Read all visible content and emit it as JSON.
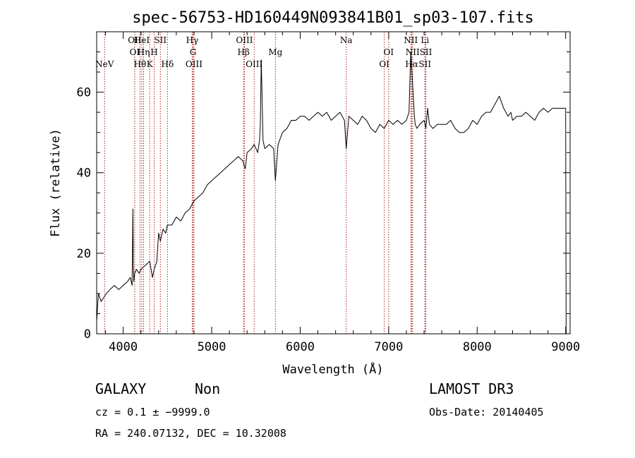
{
  "chart_data": {
    "type": "line",
    "title": "spec-56753-HD160449N093841B01_sp03-107.fits",
    "xlabel": "Wavelength (Å)",
    "ylabel": "Flux (relative)",
    "xlim": [
      3700,
      9050
    ],
    "ylim": [
      0,
      75
    ],
    "x_ticks": [
      4000,
      5000,
      6000,
      7000,
      8000,
      9000
    ],
    "y_ticks": [
      0,
      20,
      40,
      60
    ],
    "grid": false,
    "series": [
      {
        "x": [
          3700,
          3720,
          3750,
          3780,
          3810,
          3850,
          3900,
          3950,
          4000,
          4050,
          4080,
          4100,
          4110,
          4115,
          4120,
          4130,
          4150,
          4180,
          4200,
          4250,
          4300,
          4330,
          4350,
          4380,
          4400,
          4420,
          4450,
          4480,
          4500,
          4550,
          4600,
          4650,
          4700,
          4750,
          4800,
          4850,
          4900,
          4950,
          5000,
          5050,
          5100,
          5150,
          5200,
          5250,
          5300,
          5350,
          5380,
          5400,
          5450,
          5480,
          5500,
          5520,
          5540,
          5550,
          5560,
          5580,
          5600,
          5650,
          5700,
          5720,
          5750,
          5800,
          5850,
          5900,
          5950,
          6000,
          6050,
          6100,
          6150,
          6200,
          6250,
          6300,
          6350,
          6400,
          6450,
          6500,
          6520,
          6550,
          6600,
          6650,
          6700,
          6750,
          6800,
          6850,
          6900,
          6950,
          7000,
          7050,
          7100,
          7150,
          7200,
          7230,
          7250,
          7270,
          7290,
          7300,
          7320,
          7350,
          7400,
          7420,
          7440,
          7460,
          7500,
          7550,
          7600,
          7650,
          7700,
          7750,
          7800,
          7850,
          7900,
          7950,
          8000,
          8050,
          8100,
          8150,
          8200,
          8250,
          8300,
          8350,
          8380,
          8400,
          8450,
          8500,
          8550,
          8600,
          8650,
          8700,
          8750,
          8800,
          8850,
          8900,
          8950,
          9000,
          9005
        ],
        "y": [
          3,
          10,
          8,
          9,
          10,
          11,
          12,
          11,
          12,
          13,
          14,
          12,
          31,
          17,
          13,
          15,
          16,
          15,
          16,
          17,
          18,
          14,
          16,
          18,
          25,
          23,
          26,
          25,
          27,
          27,
          29,
          28,
          30,
          31,
          33,
          34,
          35,
          37,
          38,
          39,
          40,
          41,
          42,
          43,
          44,
          43,
          41,
          45,
          46,
          47,
          46,
          45,
          48,
          52,
          68,
          48,
          46,
          47,
          46,
          38,
          47,
          50,
          51,
          53,
          53,
          54,
          54,
          53,
          54,
          55,
          54,
          55,
          53,
          54,
          55,
          53,
          46,
          54,
          53,
          52,
          54,
          53,
          51,
          50,
          52,
          51,
          53,
          52,
          53,
          52,
          53,
          55,
          70,
          62,
          54,
          52,
          51,
          52,
          53,
          51,
          56,
          52,
          51,
          52,
          52,
          52,
          53,
          51,
          50,
          50,
          51,
          53,
          52,
          54,
          55,
          55,
          57,
          59,
          56,
          54,
          55,
          53,
          54,
          54,
          55,
          54,
          53,
          55,
          56,
          55,
          56,
          56,
          56,
          56,
          0
        ]
      }
    ],
    "spectral_lines": [
      {
        "name": "NeV",
        "wavelength": 3790,
        "row": 3
      },
      {
        "name": "OII",
        "wavelength": 4130,
        "row": 1
      },
      {
        "name": "OI",
        "wavelength": 4130,
        "row": 2
      },
      {
        "name": "Hθ",
        "wavelength": 4190,
        "row": 3
      },
      {
        "name": "HeI",
        "wavelength": 4210,
        "row": 1
      },
      {
        "name": "Hη",
        "wavelength": 4230,
        "row": 2
      },
      {
        "name": "K",
        "wavelength": 4300,
        "row": 3
      },
      {
        "name": "H",
        "wavelength": 4350,
        "row": 2
      },
      {
        "name": "SII",
        "wavelength": 4420,
        "row": 1
      },
      {
        "name": "Hδ",
        "wavelength": 4500,
        "row": 3
      },
      {
        "name": "Hγ",
        "wavelength": 4780,
        "row": 1
      },
      {
        "name": "G",
        "wavelength": 4790,
        "row": 2
      },
      {
        "name": "OIII",
        "wavelength": 4800,
        "row": 3
      },
      {
        "name": "OIII",
        "wavelength": 5370,
        "row": 1
      },
      {
        "name": "Hβ",
        "wavelength": 5360,
        "row": 2
      },
      {
        "name": "OIII",
        "wavelength": 5480,
        "row": 3
      },
      {
        "name": "Mg",
        "wavelength": 5720,
        "row": 2
      },
      {
        "name": "Na",
        "wavelength": 6520,
        "row": 1
      },
      {
        "name": "OI",
        "wavelength": 7000,
        "row": 2
      },
      {
        "name": "OI",
        "wavelength": 6950,
        "row": 3
      },
      {
        "name": "NII",
        "wavelength": 7250,
        "row": 1
      },
      {
        "name": "NII",
        "wavelength": 7270,
        "row": 2
      },
      {
        "name": "Hα",
        "wavelength": 7260,
        "row": 3
      },
      {
        "name": "Li",
        "wavelength": 7410,
        "row": 1
      },
      {
        "name": "SII",
        "wavelength": 7420,
        "row": 2
      },
      {
        "name": "SII",
        "wavelength": 7410,
        "row": 3
      }
    ]
  },
  "footer": {
    "class_label": "GALAXY",
    "subclass_label": "Non",
    "survey_label": "LAMOST DR3",
    "redshift_text": "cz = 0.1 ± −9999.0",
    "obs_date_text": "Obs-Date: 20140405",
    "coords_text": "RA = 240.07132, DEC =  10.32008"
  },
  "colors": {
    "spectrum": "#000000",
    "line_marker": "#b22222",
    "axis": "#000000"
  }
}
